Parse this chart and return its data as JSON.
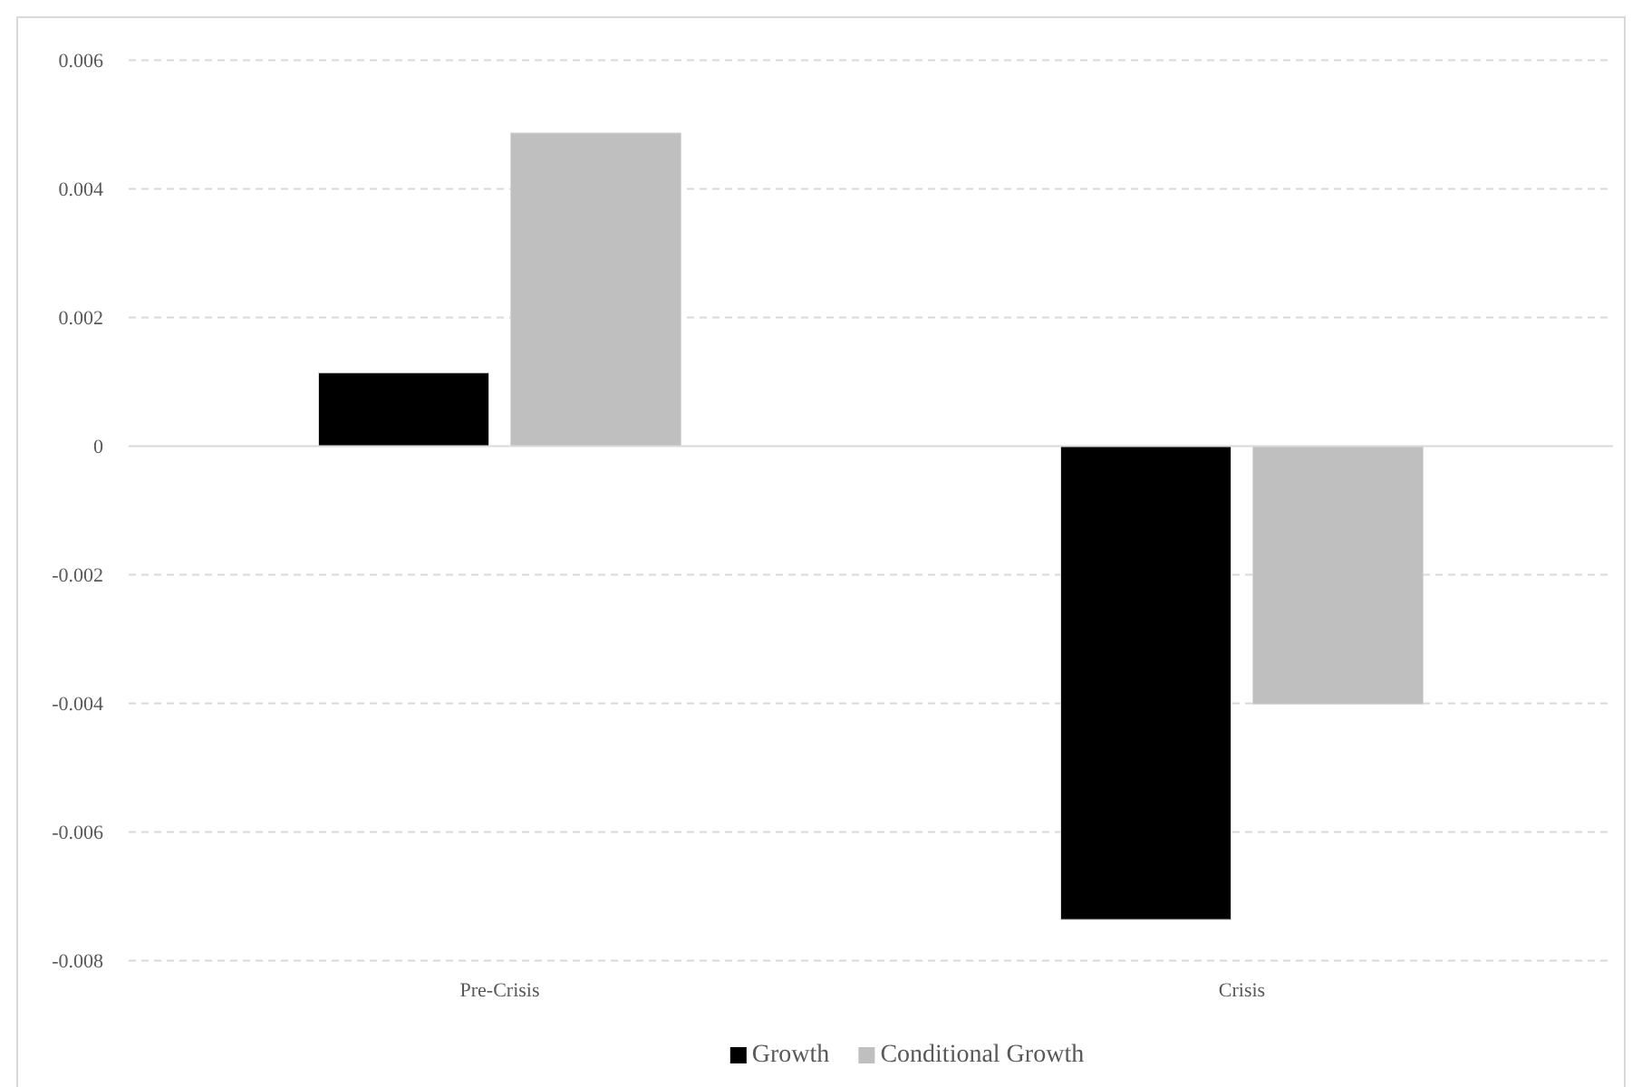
{
  "chart_data": {
    "type": "bar",
    "categories": [
      "Pre-Crisis",
      "Crisis"
    ],
    "series": [
      {
        "name": "Growth",
        "color": "#000000",
        "values": [
          0.00114,
          -0.00736
        ]
      },
      {
        "name": "Conditional Growth",
        "color": "#bfbfbf",
        "values": [
          0.00487,
          -0.00401
        ]
      }
    ],
    "ylim": [
      -0.008,
      0.006
    ],
    "yticks": [
      -0.008,
      -0.006,
      -0.004,
      -0.002,
      0,
      0.002,
      0.004,
      0.006
    ],
    "grid": "y",
    "legend": "bottom"
  }
}
